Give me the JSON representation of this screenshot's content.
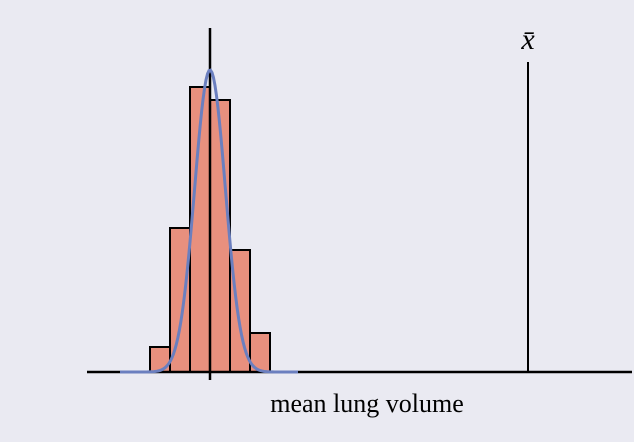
{
  "chart_data": {
    "type": "histogram",
    "xlabel": "mean lung volume",
    "bins": [
      -3,
      -2,
      -1,
      0,
      1,
      2,
      3
    ],
    "values": [
      25,
      144,
      285,
      272,
      122,
      39
    ],
    "color": "#e8907e",
    "curve": {
      "mean": 0,
      "sd": 0.77,
      "peak": 302,
      "from": -4.5,
      "to": 4.4,
      "color": "#6b7fbf"
    },
    "x_bar": {
      "label": "x̄",
      "value": 15.9
    },
    "xlim": [
      -6.15,
      21.1
    ],
    "ylim": [
      0,
      310
    ]
  }
}
